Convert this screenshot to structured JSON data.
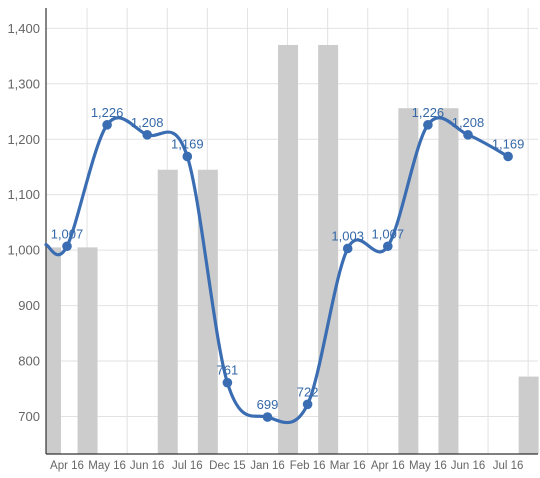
{
  "chart_data": {
    "type": "bar+line",
    "title": "",
    "xlabel": "",
    "ylabel": "",
    "categories": [
      "Apr 16",
      "May 16",
      "Jun 16",
      "Jul 16",
      "Dec 15",
      "Jan 16",
      "Feb 16",
      "Mar 16",
      "Apr 16",
      "May 16",
      "Jun 16",
      "Jul 16"
    ],
    "ylim": [
      645,
      1420
    ],
    "yticks": [
      700,
      800,
      900,
      1000,
      1100,
      1200,
      1300,
      1400
    ],
    "ytick_labels": [
      "700",
      "800",
      "900",
      "1,000",
      "1,100",
      "1,200",
      "1,300",
      "1,400"
    ],
    "grid": true,
    "bar_series": {
      "color": "#cccccc",
      "values": [
        1005,
        null,
        1145,
        1145,
        null,
        1370,
        1370,
        null,
        1256,
        1256,
        null,
        772
      ],
      "pre_axis_bar": 1005
    },
    "line_series": {
      "color": "#3b6db3",
      "values": [
        1007,
        1226,
        1208,
        1169,
        761,
        699,
        722,
        1003,
        1007,
        1226,
        1208,
        1169
      ],
      "labels": [
        "1,007",
        "1,226",
        "1,208",
        "1,169",
        "761",
        "699",
        "722",
        "1,003",
        "1,007",
        "1,226",
        "1,208",
        "1,169"
      ],
      "start_value": 1010
    }
  }
}
